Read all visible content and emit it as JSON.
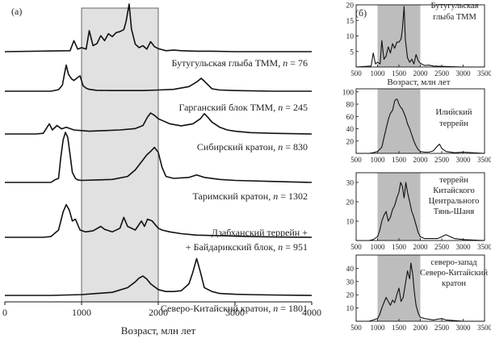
{
  "figure": {
    "panel_a_label": "(а)",
    "panel_b_label": "(б)"
  },
  "chart_data": [
    {
      "panel": "(а)",
      "type": "line",
      "xlabel": "Возраст, млн лет",
      "ylabel": "",
      "xlim": [
        0,
        4000
      ],
      "x_ticks": [
        0,
        1000,
        2000,
        3000,
        4000
      ],
      "shaded_range": [
        1000,
        2000
      ],
      "series": [
        {
          "name": "Бутугульская глыба ТММ, n = 76",
          "label_parts": [
            "Бутугульская глыба ТММ, ",
            "n",
            " = 76"
          ],
          "x": [
            0,
            850,
            900,
            950,
            1000,
            1060,
            1100,
            1150,
            1200,
            1250,
            1300,
            1350,
            1400,
            1450,
            1500,
            1550,
            1580,
            1620,
            1650,
            1700,
            1750,
            1800,
            1850,
            1900,
            1950,
            2000,
            2050,
            2100,
            2200,
            2300,
            2500,
            2700,
            3000,
            3500,
            4000
          ],
          "y": [
            0,
            0.02,
            0.22,
            0.05,
            0.08,
            0.05,
            0.42,
            0.12,
            0.16,
            0.32,
            0.22,
            0.36,
            0.3,
            0.38,
            0.4,
            0.44,
            0.6,
            0.95,
            0.45,
            0.15,
            0.08,
            0.12,
            0.05,
            0.2,
            0.1,
            0.06,
            0.04,
            0.02,
            0.03,
            0.02,
            0.01,
            0.01,
            0,
            0,
            0
          ]
        },
        {
          "name": "Гарганский блок ТММ, n = 245",
          "label_parts": [
            "Гарганский блок ТММ, ",
            "n",
            " = 245"
          ],
          "x": [
            0,
            600,
            700,
            750,
            780,
            800,
            830,
            870,
            900,
            950,
            980,
            1020,
            1060,
            1100,
            1200,
            1400,
            1600,
            1800,
            2000,
            2200,
            2400,
            2500,
            2560,
            2620,
            2700,
            2800,
            3000,
            3500,
            4000
          ],
          "y": [
            0,
            0,
            0.05,
            0.2,
            0.6,
            0.85,
            0.55,
            0.4,
            0.35,
            0.45,
            0.5,
            0.18,
            0.1,
            0.06,
            0.03,
            0.02,
            0.02,
            0.02,
            0.04,
            0.06,
            0.15,
            0.3,
            0.42,
            0.28,
            0.08,
            0.04,
            0.02,
            0,
            0
          ]
        },
        {
          "name": "Сибирский кратон, n = 830",
          "label_parts": [
            "Сибирский кратон, ",
            "n",
            " = 830"
          ],
          "x": [
            0,
            400,
            500,
            580,
            620,
            680,
            740,
            800,
            900,
            1000,
            1100,
            1300,
            1500,
            1700,
            1800,
            1860,
            1900,
            1950,
            2000,
            2050,
            2150,
            2300,
            2450,
            2550,
            2600,
            2650,
            2700,
            2800,
            2900,
            3000,
            3200,
            3500,
            4000
          ],
          "y": [
            0,
            0,
            0.02,
            0.3,
            0.12,
            0.25,
            0.15,
            0.2,
            0.12,
            0.1,
            0.08,
            0.1,
            0.12,
            0.16,
            0.25,
            0.5,
            0.62,
            0.55,
            0.45,
            0.4,
            0.3,
            0.24,
            0.3,
            0.45,
            0.6,
            0.48,
            0.35,
            0.2,
            0.12,
            0.08,
            0.04,
            0.02,
            0
          ]
        },
        {
          "name": "Таримский кратон, n = 1302",
          "label_parts": [
            "Таримский кратон, ",
            "n",
            " = 1302"
          ],
          "x": [
            0,
            600,
            650,
            700,
            730,
            760,
            790,
            820,
            850,
            880,
            920,
            950,
            1000,
            1200,
            1400,
            1600,
            1700,
            1800,
            1850,
            1900,
            1950,
            2000,
            2050,
            2100,
            2200,
            2400,
            2500,
            2600,
            2800,
            3000,
            3500,
            4000
          ],
          "y": [
            0,
            0,
            0.05,
            0.08,
            0.5,
            0.85,
            1.0,
            0.9,
            0.55,
            0.2,
            0.08,
            0.05,
            0.04,
            0.05,
            0.06,
            0.12,
            0.25,
            0.45,
            0.55,
            0.62,
            0.7,
            0.6,
            0.3,
            0.12,
            0.08,
            0.1,
            0.15,
            0.1,
            0.06,
            0.04,
            0.02,
            0
          ]
        },
        {
          "name": "Дзабханский террейн + Байдарикский блок, n = 951",
          "label_parts": [
            "Дзабханский террейн +",
            "+ Байдарикский блок, ",
            "n",
            " = 951"
          ],
          "x": [
            0,
            500,
            600,
            700,
            760,
            800,
            840,
            880,
            920,
            980,
            1050,
            1150,
            1250,
            1300,
            1400,
            1500,
            1550,
            1600,
            1700,
            1780,
            1820,
            1860,
            1920,
            1960,
            2000,
            2050,
            2150,
            2300,
            2500,
            2700,
            2900,
            3000,
            3200,
            3500,
            4000
          ],
          "y": [
            0,
            0,
            0.02,
            0.2,
            0.7,
            0.9,
            0.75,
            0.45,
            0.5,
            0.2,
            0.15,
            0.18,
            0.3,
            0.22,
            0.15,
            0.25,
            0.55,
            0.3,
            0.2,
            0.45,
            0.3,
            0.5,
            0.45,
            0.35,
            0.25,
            0.2,
            0.15,
            0.1,
            0.06,
            0.05,
            0.04,
            0.03,
            0.02,
            0.01,
            0
          ]
        },
        {
          "name": "Северо-Китайский кратон, n = 1801",
          "label_parts": [
            "Северо-Китайский кратон, ",
            "n",
            " = 1801"
          ],
          "x": [
            0,
            600,
            800,
            1000,
            1200,
            1400,
            1600,
            1700,
            1750,
            1800,
            1850,
            1900,
            2000,
            2100,
            2200,
            2300,
            2400,
            2450,
            2500,
            2550,
            2600,
            2700,
            2800,
            3000,
            3200,
            3500,
            4000
          ],
          "y": [
            0,
            0,
            0.01,
            0.02,
            0.05,
            0.08,
            0.2,
            0.35,
            0.45,
            0.5,
            0.42,
            0.3,
            0.15,
            0.1,
            0.1,
            0.12,
            0.3,
            0.6,
            0.95,
            0.6,
            0.2,
            0.1,
            0.05,
            0.03,
            0.02,
            0.01,
            0
          ]
        }
      ]
    },
    {
      "panel": "(б)",
      "type": "line",
      "title": "Бутугульская глыба ТММ",
      "xlabel": "Возраст, млн лет",
      "xlim": [
        500,
        3500
      ],
      "ylim": [
        0,
        20
      ],
      "x_ticks": [
        500,
        1000,
        1500,
        2000,
        2500,
        3000,
        3500
      ],
      "y_ticks": [
        5,
        10,
        15,
        20
      ],
      "shaded_range": [
        1000,
        2000
      ],
      "x": [
        500,
        850,
        900,
        950,
        1000,
        1060,
        1100,
        1150,
        1200,
        1250,
        1300,
        1350,
        1400,
        1450,
        1500,
        1550,
        1580,
        1620,
        1650,
        1700,
        1750,
        1800,
        1850,
        1900,
        1950,
        2000,
        2050,
        2100,
        2200,
        2300,
        2500,
        2700,
        3000,
        3500
      ],
      "y": [
        0,
        0.3,
        4.5,
        1,
        1.5,
        1,
        8.5,
        2.5,
        3.5,
        6.5,
        4.5,
        7.5,
        6,
        8,
        8,
        9,
        12,
        19.5,
        9,
        3,
        1.5,
        2.5,
        1,
        4,
        2,
        1.2,
        0.8,
        0.5,
        0.6,
        0.3,
        0.2,
        0.1,
        0,
        0
      ]
    },
    {
      "panel": "(б)",
      "type": "line",
      "title": "Илийский террейн",
      "xlim": [
        500,
        3500
      ],
      "ylim": [
        0,
        105
      ],
      "x_ticks": [
        500,
        1000,
        1500,
        2000,
        2500,
        3000,
        3500
      ],
      "y_ticks": [
        20,
        40,
        60,
        80,
        100
      ],
      "shaded_range": [
        1000,
        2000
      ],
      "x": [
        500,
        800,
        900,
        1000,
        1100,
        1150,
        1200,
        1250,
        1300,
        1350,
        1400,
        1430,
        1460,
        1500,
        1540,
        1580,
        1620,
        1660,
        1700,
        1750,
        1800,
        1850,
        1900,
        1950,
        2000,
        2100,
        2200,
        2300,
        2400,
        2450,
        2500,
        2600,
        2800,
        3000,
        3500
      ],
      "y": [
        0,
        0,
        1,
        3,
        10,
        25,
        40,
        55,
        65,
        70,
        85,
        88,
        88,
        80,
        75,
        72,
        65,
        58,
        48,
        40,
        30,
        20,
        12,
        6,
        3,
        2,
        2,
        4,
        12,
        15,
        8,
        3,
        1,
        2,
        0
      ]
    },
    {
      "panel": "(б)",
      "type": "line",
      "title": "террейн Китайского Центрального Тянь-Шаня",
      "xlim": [
        500,
        3500
      ],
      "ylim": [
        0,
        35
      ],
      "x_ticks": [
        500,
        1000,
        1500,
        2000,
        2500,
        3000,
        3500
      ],
      "y_ticks": [
        10,
        20,
        30
      ],
      "shaded_range": [
        1000,
        2000
      ],
      "x": [
        500,
        800,
        900,
        1000,
        1050,
        1100,
        1150,
        1200,
        1250,
        1300,
        1350,
        1400,
        1450,
        1500,
        1540,
        1580,
        1620,
        1660,
        1700,
        1750,
        1800,
        1850,
        1900,
        1950,
        2000,
        2100,
        2200,
        2400,
        2500,
        2600,
        2700,
        2800,
        3000,
        3500
      ],
      "y": [
        0,
        0,
        0.5,
        2,
        5,
        10,
        13,
        15,
        10,
        12,
        16,
        18,
        22,
        25,
        30,
        28,
        22,
        30,
        25,
        20,
        15,
        12,
        8,
        4,
        2,
        1,
        1,
        1,
        2,
        3,
        2,
        1,
        0.5,
        0
      ],
      "title_lines": [
        "террейн",
        "Китайского",
        "Центрального",
        "Тянь-Шаня"
      ]
    },
    {
      "panel": "(б)",
      "type": "line",
      "title": "северо-запад Северо-Китайский кратон",
      "xlim": [
        500,
        3500
      ],
      "ylim": [
        0,
        50
      ],
      "x_ticks": [
        500,
        1000,
        1500,
        2000,
        2500,
        3000,
        3500
      ],
      "y_ticks": [
        10,
        20,
        30,
        40
      ],
      "shaded_range": [
        1000,
        2000
      ],
      "x": [
        500,
        800,
        900,
        1000,
        1050,
        1100,
        1150,
        1200,
        1250,
        1300,
        1350,
        1400,
        1450,
        1500,
        1550,
        1600,
        1650,
        1700,
        1750,
        1780,
        1820,
        1860,
        1900,
        1950,
        2000,
        2100,
        2300,
        2500,
        2600,
        2800,
        3000,
        3500
      ],
      "y": [
        0,
        0,
        1,
        2,
        5,
        10,
        14,
        18,
        15,
        12,
        16,
        14,
        20,
        25,
        15,
        18,
        28,
        38,
        32,
        44,
        36,
        22,
        12,
        6,
        3,
        2,
        1,
        2,
        1,
        0.5,
        0,
        0
      ],
      "title_lines": [
        "северо-запад",
        "Северо-Китайский",
        "кратон"
      ]
    }
  ]
}
